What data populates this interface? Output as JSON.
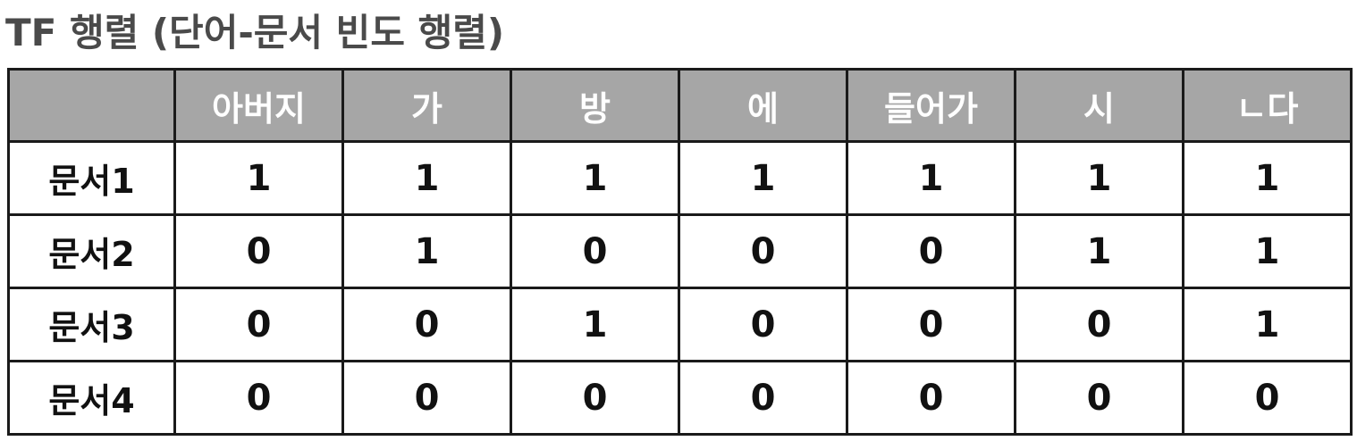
{
  "title": "TF 행렬 (단어-문서 빈도 행렬)",
  "table": {
    "corner": "",
    "columns": [
      "아버지",
      "가",
      "방",
      "에",
      "들어가",
      "시",
      "ㄴ다"
    ],
    "rows": [
      {
        "label": "문서1",
        "values": [
          "1",
          "1",
          "1",
          "1",
          "1",
          "1",
          "1"
        ]
      },
      {
        "label": "문서2",
        "values": [
          "0",
          "1",
          "0",
          "0",
          "0",
          "1",
          "1"
        ]
      },
      {
        "label": "문서3",
        "values": [
          "0",
          "0",
          "1",
          "0",
          "0",
          "0",
          "1"
        ]
      },
      {
        "label": "문서4",
        "values": [
          "0",
          "0",
          "0",
          "0",
          "0",
          "0",
          "0"
        ]
      }
    ]
  },
  "colors": {
    "header_bg": "#a6a6a6",
    "header_text": "#ffffff",
    "grid": "#1a1a1a",
    "title_text": "#4a4a4a"
  }
}
